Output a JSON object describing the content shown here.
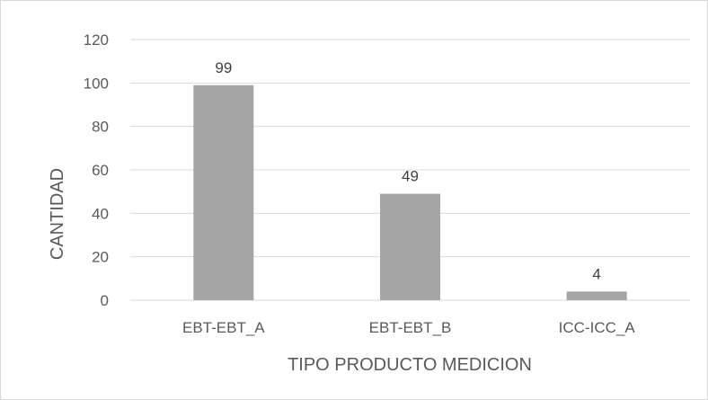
{
  "chart_data": {
    "type": "bar",
    "categories": [
      "EBT-EBT_A",
      "EBT-EBT_B",
      "ICC-ICC_A"
    ],
    "values": [
      99,
      49,
      4
    ],
    "data_labels": [
      "99",
      "49",
      "4"
    ],
    "xlabel": "TIPO PRODUCTO MEDICION",
    "ylabel": "CANTIDAD",
    "ylim": [
      0,
      120
    ],
    "yticks": [
      0,
      20,
      40,
      60,
      80,
      100,
      120
    ],
    "grid": true,
    "legend": "none",
    "colors": {
      "bar": "#a5a5a5",
      "grid": "#d9d9d9",
      "text": "#595959"
    }
  }
}
